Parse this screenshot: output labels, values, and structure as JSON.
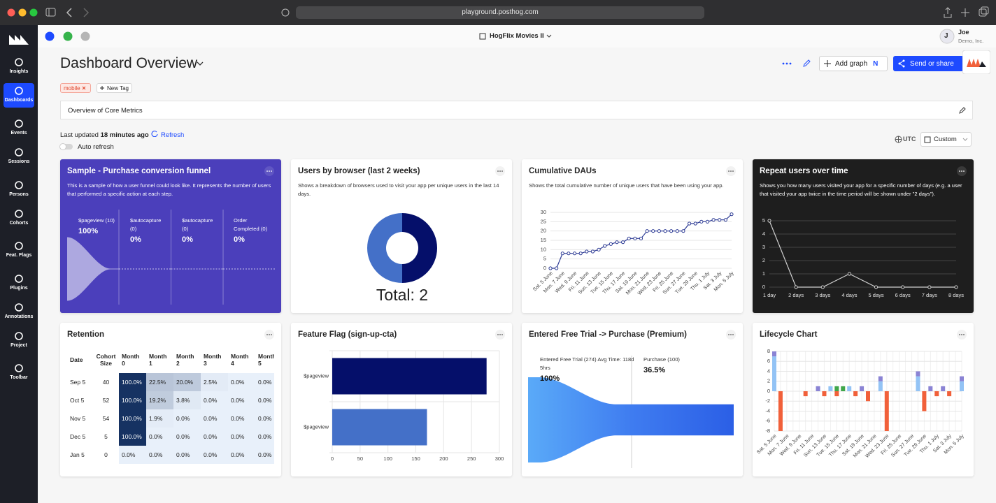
{
  "browser": {
    "url": "playground.posthog.com"
  },
  "sidebar": [
    "Insights",
    "Dashboards",
    "Events",
    "Sessions",
    "Persons",
    "Cohorts",
    "Feat. Flags",
    "Plugins",
    "Annotations",
    "Project",
    "Toolbar"
  ],
  "topbar": {
    "project": "HogFlix Movies II",
    "avatar": "J",
    "user": "Joe",
    "organization": "Demo, Inc."
  },
  "header": {
    "title": "Dashboard Overview",
    "add_graph": "Add graph",
    "add_graph_shortcut": "N",
    "share": "Send or share",
    "tags": [
      "mobile"
    ],
    "new_tag": "New Tag",
    "description": "Overview of Core Metrics",
    "last_updated_label": "Last updated",
    "last_updated": "18 minutes ago",
    "refresh": "Refresh",
    "auto_refresh": "Auto refresh",
    "timezone": "UTC",
    "date_range": "Custom"
  },
  "tiles": [
    {
      "title": "Sample - Purchase conversion funnel",
      "description": "This is a sample of how a user funnel could look like. It represents the number of users that performed a specific action at each step.",
      "chart": {
        "type": "funnel",
        "steps": [
          {
            "name": "$pageview",
            "count": {
              "value": 10,
              "label": "(10)"
            },
            "percent": {
              "value": 100,
              "label": "100%"
            }
          },
          {
            "name": "$autocapture",
            "count": {
              "value": 0,
              "label": "(0)"
            },
            "percent": {
              "value": 0,
              "label": "0%"
            }
          },
          {
            "name": "$autocapture",
            "count": {
              "value": 0,
              "label": "(0)"
            },
            "percent": {
              "value": 0,
              "label": "0%"
            }
          },
          {
            "name": "Order Completed",
            "count": {
              "value": 0,
              "label": "(0)"
            },
            "percent": {
              "value": 0,
              "label": "0%"
            }
          }
        ]
      }
    },
    {
      "title": "Users by browser (last 2 weeks)",
      "description": "Shows a breakdown of browsers used to visit your app per unique users in the last 14 days.",
      "chart": {
        "type": "pie",
        "values": [
          1,
          1
        ],
        "colors": [
          "#050f6a",
          "#4470c8"
        ],
        "total": {
          "value": 2,
          "label": "Total: 2"
        }
      }
    },
    {
      "title": "Cumulative DAUs",
      "description": "Shows the total cumulative number of unique users that have been using your app.",
      "chart": {
        "type": "line",
        "color": "#2c3a94",
        "categories": [
          "Sat. 5 June",
          null,
          "Mon. 7 June",
          null,
          "Wed. 9 June",
          null,
          "Fri. 11 June",
          null,
          "Sun. 13 June",
          null,
          "Tue. 15 June",
          null,
          "Thu. 17 June",
          null,
          "Sat. 19 June",
          null,
          "Mon. 21 June",
          null,
          "Wed. 23 June",
          null,
          "Fri. 25 June",
          null,
          "Sun. 27 June",
          null,
          "Tue. 29 June",
          null,
          "Thu. 1 July",
          null,
          "Sat. 3 July",
          null,
          "Mon. 5 July"
        ],
        "values": [
          0,
          0,
          8,
          8,
          8,
          8,
          9,
          9,
          10,
          12,
          13,
          14,
          14,
          16,
          16,
          16,
          20,
          20,
          20,
          20,
          20,
          20,
          20,
          24,
          24,
          25,
          25,
          26,
          26,
          26,
          29
        ],
        "ylim": [
          0,
          30
        ],
        "yticks": [
          0,
          5,
          10,
          15,
          20,
          25,
          30
        ],
        "grid": true
      }
    },
    {
      "title": "Repeat users over time",
      "description": "Shows you how many users visited your app for a specific number of days (e.g. a user that visited your app twice in the time period will be shown under \"2 days\").",
      "chart": {
        "type": "line",
        "color": "#d0d0d0",
        "categories": [
          "1 day",
          "2 days",
          "3 days",
          "4 days",
          "5 days",
          "6 days",
          "7 days",
          "8 days"
        ],
        "values": [
          5,
          0,
          0,
          1,
          0,
          0,
          0,
          0
        ],
        "ylim": [
          0,
          5
        ],
        "yticks": [
          0,
          1,
          2,
          3,
          4,
          5
        ],
        "grid": true
      }
    },
    {
      "title": "Retention",
      "chart": {
        "type": "table",
        "columns": [
          "Date",
          "Cohort Size",
          "Month 0",
          "Month 1",
          "Month 2",
          "Month 3",
          "Month 4",
          "Month 5"
        ],
        "rows": [
          [
            "Sep 5",
            "40",
            "100.0%",
            "22.5%",
            "20.0%",
            "2.5%",
            "0.0%",
            "0.0%"
          ],
          [
            "Oct 5",
            "52",
            "100.0%",
            "19.2%",
            "3.8%",
            "0.0%",
            "0.0%",
            "0.0%"
          ],
          [
            "Nov 5",
            "54",
            "100.0%",
            "1.9%",
            "0.0%",
            "0.0%",
            "0.0%",
            "0.0%"
          ],
          [
            "Dec 5",
            "5",
            "100.0%",
            "0.0%",
            "0.0%",
            "0.0%",
            "0.0%",
            "0.0%"
          ],
          [
            "Jan 5",
            "0",
            "0.0%",
            "0.0%",
            "0.0%",
            "0.0%",
            "0.0%",
            "0.0%"
          ]
        ]
      }
    },
    {
      "title": "Feature Flag (sign-up-cta)",
      "chart": {
        "type": "hbar",
        "categories": [
          "$pageview",
          "$pageview"
        ],
        "values": [
          277,
          170
        ],
        "colors": [
          "#050f6a",
          "#4470c8"
        ],
        "xlim": [
          0,
          300
        ],
        "xticks": [
          0,
          50,
          100,
          150,
          200,
          250,
          300
        ],
        "grid": true
      }
    },
    {
      "title": "Entered Free Trial -> Purchase (Premium)",
      "chart": {
        "type": "funnel_flow",
        "steps": [
          {
            "name": "Entered Free Trial",
            "count": {
              "value": 274,
              "label": "(274)"
            },
            "avg_time": "Avg Time: 118d 5hrs",
            "percent": {
              "value": 100,
              "label": "100%"
            }
          },
          {
            "name": "Purchase",
            "count": {
              "value": 100,
              "label": "(100)"
            },
            "percent": {
              "value": 36.5,
              "label": "36.5%"
            }
          }
        ]
      }
    },
    {
      "title": "Lifecycle Chart",
      "chart": {
        "type": "stacked_bar",
        "categories": [
          "Sat. 5 June",
          null,
          "Mon. 7 June",
          null,
          "Wed. 9 June",
          null,
          "Fri. 11 June",
          null,
          "Sun. 13 June",
          null,
          "Tue. 15 June",
          null,
          "Thu. 17 June",
          null,
          "Sat. 19 June",
          null,
          "Mon. 21 June",
          null,
          "Wed. 23 June",
          null,
          "Fri. 25 June",
          null,
          "Sun. 27 June",
          null,
          "Tue. 29 June",
          null,
          "Thu. 1 July",
          null,
          "Sat. 3 July",
          null,
          "Mon. 5 July"
        ],
        "series": [
          {
            "color": "#93c3f5",
            "values": [
              7,
              0,
              0,
              0,
              0,
              0,
              0,
              0,
              0,
              1,
              0,
              0,
              1,
              0,
              0,
              0,
              0,
              2,
              0,
              0,
              0,
              0,
              0,
              3,
              0,
              0,
              0,
              0,
              0,
              0,
              2
            ]
          },
          {
            "color": "#8a83d4",
            "values": [
              1,
              0,
              0,
              0,
              0,
              0,
              0,
              1,
              0,
              0,
              0,
              0,
              0,
              0,
              1,
              0,
              0,
              1,
              0,
              0,
              0,
              0,
              0,
              1,
              0,
              1,
              0,
              1,
              0,
              0,
              1
            ]
          },
          {
            "color": "#3fa64a",
            "values": [
              0,
              0,
              0,
              0,
              0,
              0,
              0,
              0,
              0,
              0,
              1,
              1,
              0,
              0,
              0,
              0,
              0,
              0,
              0,
              0,
              0,
              0,
              0,
              0,
              0,
              0,
              0,
              0,
              0,
              0,
              0
            ]
          },
          {
            "color": "#f1603a",
            "values": [
              0,
              -8,
              0,
              0,
              0,
              -1,
              0,
              0,
              -1,
              0,
              -1,
              0,
              0,
              -1,
              0,
              -2,
              0,
              0,
              -8,
              0,
              0,
              0,
              0,
              0,
              -4,
              0,
              -1,
              0,
              -1,
              0,
              0
            ]
          }
        ],
        "ylim": [
          -8,
          8
        ],
        "yticks": [
          -8,
          -6,
          -4,
          -2,
          0,
          2,
          4,
          6,
          8
        ],
        "grid": true
      }
    }
  ]
}
